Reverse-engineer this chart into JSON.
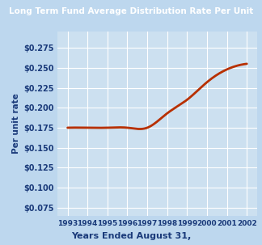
{
  "title": "Long Term Fund Average Distribution Rate Per Unit",
  "xlabel": "Years Ended August 31,",
  "ylabel": "Per unit rate",
  "years": [
    1993,
    1994,
    1995,
    1996,
    1997,
    1998,
    1999,
    2000,
    2001,
    2002
  ],
  "values": [
    0.175,
    0.175,
    0.175,
    0.175,
    0.175,
    0.193,
    0.21,
    0.232,
    0.248,
    0.255
  ],
  "line_color": "#b83000",
  "line_width": 2.0,
  "bg_outer": "#bdd7ee",
  "bg_plot": "#cce0f0",
  "title_bg": "#111111",
  "title_color": "#ffffff",
  "axis_label_color": "#1a3a7a",
  "tick_label_color": "#1a3a7a",
  "grid_color": "#ffffff",
  "ylim": [
    0.065,
    0.295
  ],
  "yticks": [
    0.075,
    0.1,
    0.125,
    0.15,
    0.175,
    0.2,
    0.225,
    0.25,
    0.275
  ]
}
